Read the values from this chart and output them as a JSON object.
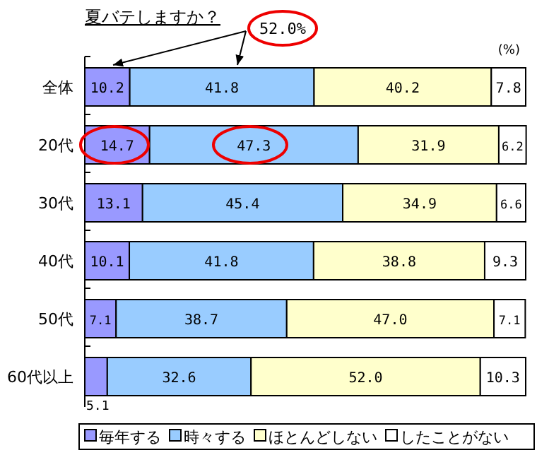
{
  "chart_data": {
    "type": "bar",
    "orientation": "horizontal",
    "stacked": true,
    "title": "夏バテしますか？",
    "categories": [
      "全体",
      "20代",
      "30代",
      "40代",
      "50代",
      "60代以上"
    ],
    "xlim": [
      0,
      100
    ],
    "tick_labels": "y",
    "legend": "bottom",
    "grid": false,
    "annotations": [
      "(%)",
      "52.0%"
    ],
    "series": [
      {
        "name": "毎年する",
        "color": "#9999ff",
        "values": [
          10.2,
          14.7,
          13.1,
          10.1,
          7.1,
          5.1
        ],
        "value_labels": [
          "10.2",
          "14.7",
          "13.1",
          "10.1",
          "7.1",
          "5.1"
        ]
      },
      {
        "name": "時々する",
        "color": "#99ccff",
        "values": [
          41.8,
          47.3,
          45.4,
          41.8,
          38.7,
          32.6
        ],
        "value_labels": [
          "41.8",
          "47.3",
          "45.4",
          "41.8",
          "38.7",
          "32.6"
        ]
      },
      {
        "name": "ほとんどしない",
        "color": "#ffffcc",
        "values": [
          40.2,
          31.9,
          34.9,
          38.8,
          47.0,
          52.0
        ],
        "value_labels": [
          "40.2",
          "31.9",
          "34.9",
          "38.8",
          "47.0",
          "52.0"
        ]
      },
      {
        "name": "したことがない",
        "color": "#ffffff",
        "values": [
          7.8,
          6.2,
          6.6,
          9.3,
          7.1,
          10.3
        ],
        "value_labels": [
          "7.8",
          "6.2",
          "6.6",
          "9.3",
          "7.1",
          "10.3"
        ]
      }
    ]
  }
}
